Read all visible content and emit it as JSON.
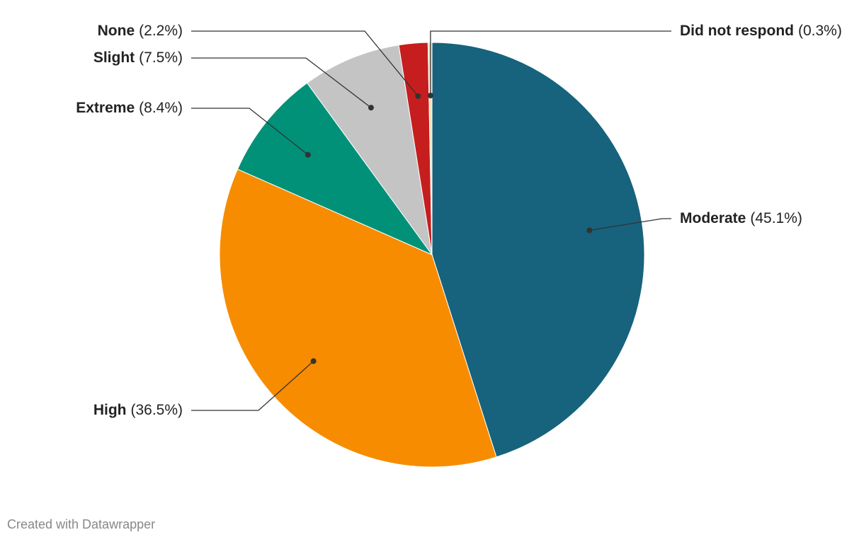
{
  "chart_data": {
    "type": "pie",
    "categories": [
      "Moderate",
      "High",
      "Extreme",
      "Slight",
      "None",
      "Did not respond"
    ],
    "values": [
      45.1,
      36.5,
      8.4,
      7.5,
      2.2,
      0.3
    ],
    "value_labels": [
      "(45.1%)",
      "(36.5%)",
      "(8.4%)",
      "(7.5%)",
      "(2.2%)",
      "(0.3%)"
    ],
    "colors": [
      "#17627c",
      "#f78c00",
      "#009178",
      "#c4c4c4",
      "#c61e1e",
      "#efe2b8"
    ],
    "credit": "Created with Datawrapper"
  }
}
